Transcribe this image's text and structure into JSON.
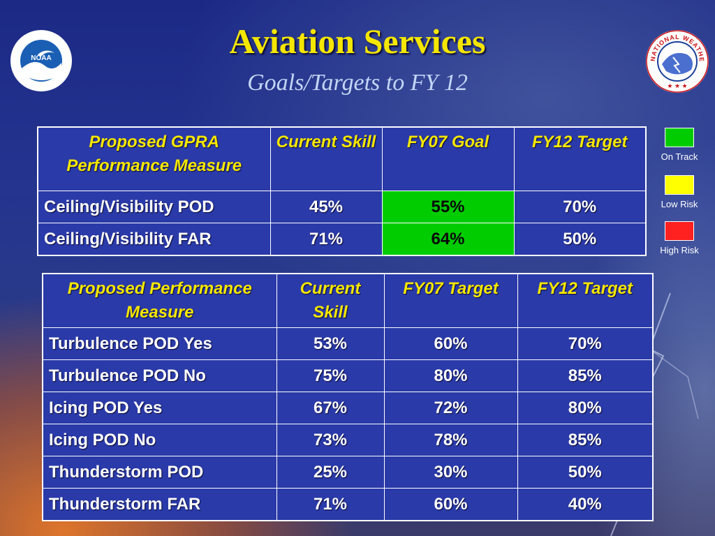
{
  "slide": {
    "title": "Aviation Services",
    "subtitle": "Goals/Targets to FY 12"
  },
  "logos": {
    "left": {
      "icon": "noaa-logo",
      "text": "NOAA"
    },
    "right": {
      "icon": "nws-logo",
      "text": "NATIONAL WEATHER SERVICE"
    }
  },
  "colors": {
    "title": "#f5e600",
    "subtitle": "#c3d6f6",
    "on_track": "#00cc00",
    "low_risk": "#ffff00",
    "high_risk": "#ff2020"
  },
  "table1": {
    "headers": [
      "Proposed GPRA Performance Measure",
      "Current Skill",
      "FY07 Goal",
      "FY12 Target"
    ],
    "rows": [
      {
        "measure": "Ceiling/Visibility POD",
        "current": "45%",
        "goal": "55%",
        "target": "70%",
        "goal_status": "On Track"
      },
      {
        "measure": "Ceiling/Visibility FAR",
        "current": "71%",
        "goal": "64%",
        "target": "50%",
        "goal_status": "On Track"
      }
    ]
  },
  "table2": {
    "headers": [
      "Proposed Performance Measure",
      "Current Skill",
      "FY07 Target",
      "FY12 Target"
    ],
    "rows": [
      {
        "measure": "Turbulence POD Yes",
        "current": "53%",
        "fy07": "60%",
        "fy12": "70%"
      },
      {
        "measure": "Turbulence POD No",
        "current": "75%",
        "fy07": "80%",
        "fy12": "85%"
      },
      {
        "measure": "Icing POD Yes",
        "current": "67%",
        "fy07": "72%",
        "fy12": "80%"
      },
      {
        "measure": "Icing POD No",
        "current": "73%",
        "fy07": "78%",
        "fy12": "85%"
      },
      {
        "measure": "Thunderstorm POD",
        "current": "25%",
        "fy07": "30%",
        "fy12": "50%"
      },
      {
        "measure": "Thunderstorm FAR",
        "current": "71%",
        "fy07": "60%",
        "fy12": "40%"
      }
    ]
  },
  "legend": [
    {
      "label": "On Track",
      "color": "#00cc00"
    },
    {
      "label": "Low Risk",
      "color": "#ffff00"
    },
    {
      "label": "High Risk",
      "color": "#ff2020"
    }
  ]
}
